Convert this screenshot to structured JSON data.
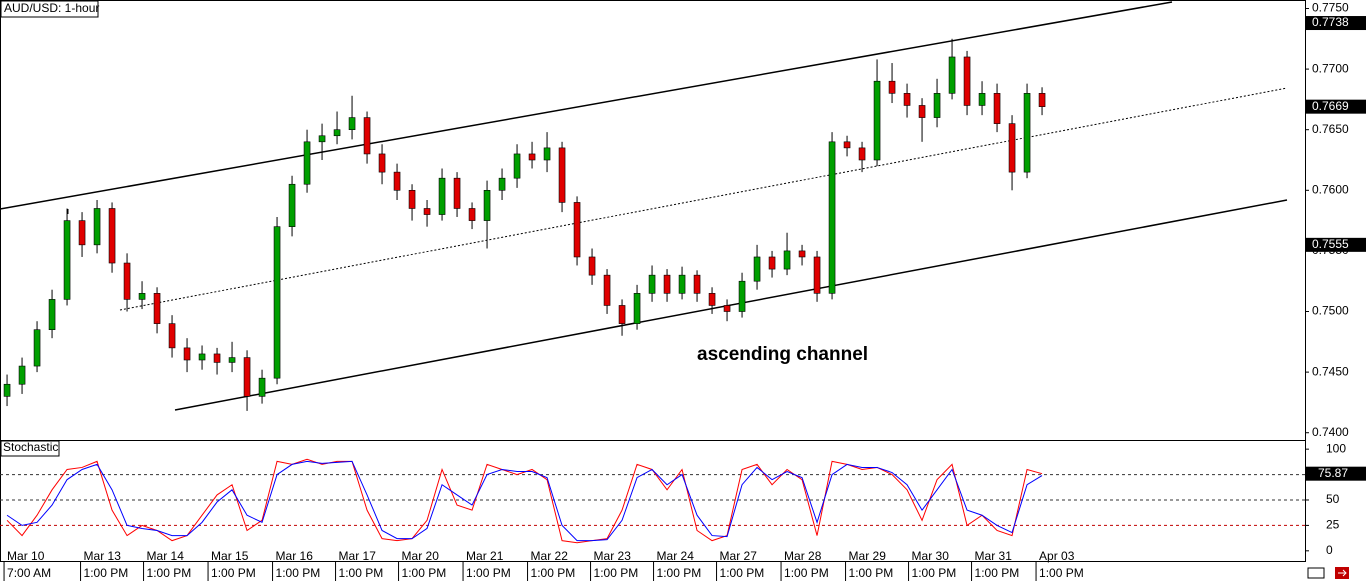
{
  "chart_data": [
    {
      "type": "candlestick",
      "title": "AUD/USD: 1-hour",
      "annotation": "ascending channel",
      "up_color": "#00a000",
      "down_color": "#e00000",
      "ylim": [
        0.7394,
        0.7757
      ],
      "yticks": [
        {
          "value": 0.74,
          "label": "0.7400"
        },
        {
          "value": 0.745,
          "label": "0.7450"
        },
        {
          "value": 0.75,
          "label": "0.7500"
        },
        {
          "value": 0.755,
          "label": "0.7550"
        },
        {
          "value": 0.76,
          "label": "0.7600"
        },
        {
          "value": 0.765,
          "label": "0.7650"
        },
        {
          "value": 0.77,
          "label": "0.7700"
        },
        {
          "value": 0.775,
          "label": "0.7750"
        }
      ],
      "price_markers": [
        0.7738,
        0.7555
      ],
      "x": [
        0,
        1,
        2,
        3,
        4,
        5,
        6,
        7,
        8,
        9,
        10,
        11,
        12,
        13,
        14,
        15,
        16,
        17,
        18,
        19,
        20,
        21,
        22,
        23,
        24,
        25,
        26,
        27,
        28,
        29,
        30,
        31,
        32,
        33,
        34,
        35,
        36,
        37,
        38,
        39,
        40,
        41,
        42,
        43,
        44,
        45,
        46,
        47,
        48,
        49,
        50,
        51,
        52,
        53,
        54,
        55,
        56,
        57,
        58,
        59,
        60,
        61,
        62,
        63,
        64,
        65,
        66,
        67,
        68,
        69
      ],
      "ohlc": [
        [
          0.743,
          0.7448,
          0.7422,
          0.744
        ],
        [
          0.744,
          0.7462,
          0.7432,
          0.7455
        ],
        [
          0.7455,
          0.7492,
          0.745,
          0.7485
        ],
        [
          0.7485,
          0.7518,
          0.7478,
          0.751
        ],
        [
          0.751,
          0.7585,
          0.7505,
          0.7575
        ],
        [
          0.7575,
          0.7582,
          0.7545,
          0.7555
        ],
        [
          0.7555,
          0.7592,
          0.7548,
          0.7585
        ],
        [
          0.7585,
          0.759,
          0.7532,
          0.754
        ],
        [
          0.754,
          0.7548,
          0.75,
          0.751
        ],
        [
          0.751,
          0.7525,
          0.7502,
          0.7515
        ],
        [
          0.7515,
          0.752,
          0.7482,
          0.749
        ],
        [
          0.749,
          0.7497,
          0.7462,
          0.747
        ],
        [
          0.747,
          0.7478,
          0.745,
          0.746
        ],
        [
          0.746,
          0.7472,
          0.7452,
          0.7465
        ],
        [
          0.7465,
          0.747,
          0.7448,
          0.7458
        ],
        [
          0.7458,
          0.7475,
          0.745,
          0.7462
        ],
        [
          0.7462,
          0.7468,
          0.7418,
          0.743
        ],
        [
          0.743,
          0.7452,
          0.7424,
          0.7445
        ],
        [
          0.7445,
          0.7578,
          0.744,
          0.757
        ],
        [
          0.757,
          0.7612,
          0.7562,
          0.7605
        ],
        [
          0.7605,
          0.765,
          0.7598,
          0.764
        ],
        [
          0.764,
          0.7655,
          0.7625,
          0.7645
        ],
        [
          0.7645,
          0.7665,
          0.7638,
          0.765
        ],
        [
          0.765,
          0.7678,
          0.7642,
          0.766
        ],
        [
          0.766,
          0.7665,
          0.7622,
          0.763
        ],
        [
          0.763,
          0.7638,
          0.7605,
          0.7615
        ],
        [
          0.7615,
          0.7622,
          0.7592,
          0.76
        ],
        [
          0.76,
          0.7605,
          0.7575,
          0.7585
        ],
        [
          0.7585,
          0.7592,
          0.757,
          0.758
        ],
        [
          0.758,
          0.7618,
          0.7575,
          0.761
        ],
        [
          0.761,
          0.7615,
          0.7578,
          0.7585
        ],
        [
          0.7585,
          0.759,
          0.7568,
          0.7575
        ],
        [
          0.7575,
          0.7608,
          0.7552,
          0.76
        ],
        [
          0.76,
          0.7618,
          0.7592,
          0.761
        ],
        [
          0.761,
          0.7638,
          0.7602,
          0.763
        ],
        [
          0.763,
          0.764,
          0.7618,
          0.7625
        ],
        [
          0.7625,
          0.7648,
          0.7615,
          0.7635
        ],
        [
          0.7635,
          0.764,
          0.7582,
          0.759
        ],
        [
          0.759,
          0.7595,
          0.7538,
          0.7545
        ],
        [
          0.7545,
          0.7552,
          0.7522,
          0.753
        ],
        [
          0.753,
          0.7535,
          0.7498,
          0.7505
        ],
        [
          0.7505,
          0.751,
          0.748,
          0.749
        ],
        [
          0.749,
          0.7522,
          0.7485,
          0.7515
        ],
        [
          0.7515,
          0.7538,
          0.7508,
          0.753
        ],
        [
          0.753,
          0.7535,
          0.7508,
          0.7515
        ],
        [
          0.7515,
          0.7537,
          0.751,
          0.753
        ],
        [
          0.753,
          0.7534,
          0.7508,
          0.7515
        ],
        [
          0.7515,
          0.752,
          0.7498,
          0.7505
        ],
        [
          0.7505,
          0.751,
          0.7492,
          0.75
        ],
        [
          0.75,
          0.7532,
          0.7495,
          0.7525
        ],
        [
          0.7525,
          0.7555,
          0.7518,
          0.7545
        ],
        [
          0.7545,
          0.755,
          0.7528,
          0.7535
        ],
        [
          0.7535,
          0.7565,
          0.753,
          0.755
        ],
        [
          0.755,
          0.7555,
          0.7538,
          0.7545
        ],
        [
          0.7545,
          0.755,
          0.7508,
          0.7515
        ],
        [
          0.7515,
          0.7648,
          0.751,
          0.764
        ],
        [
          0.764,
          0.7645,
          0.7628,
          0.7635
        ],
        [
          0.7635,
          0.764,
          0.7615,
          0.7625
        ],
        [
          0.7625,
          0.7708,
          0.762,
          0.769
        ],
        [
          0.769,
          0.7705,
          0.7672,
          0.768
        ],
        [
          0.768,
          0.7688,
          0.766,
          0.767
        ],
        [
          0.767,
          0.7676,
          0.764,
          0.766
        ],
        [
          0.766,
          0.7692,
          0.7652,
          0.768
        ],
        [
          0.768,
          0.7725,
          0.7675,
          0.771
        ],
        [
          0.771,
          0.7715,
          0.7662,
          0.767
        ],
        [
          0.767,
          0.769,
          0.7662,
          0.768
        ],
        [
          0.768,
          0.7688,
          0.7648,
          0.7655
        ],
        [
          0.7655,
          0.7662,
          0.76,
          0.7615
        ],
        [
          0.7615,
          0.7688,
          0.761,
          0.768
        ],
        [
          0.768,
          0.7685,
          0.7662,
          0.7669
        ]
      ]
    },
    {
      "type": "line",
      "title": "Stochastic",
      "xlim": [
        -0.47,
        86.53
      ],
      "xticks": [
        {
          "value": -0.2,
          "label": "Mar 10",
          "time": "7:00 AM"
        },
        {
          "value": 4.9,
          "label": "Mar 13",
          "time": "1:00 PM"
        },
        {
          "value": 9.1,
          "label": "Mar 14",
          "time": "1:00 PM"
        },
        {
          "value": 13.4,
          "label": "Mar 15",
          "time": "1:00 PM"
        },
        {
          "value": 17.7,
          "label": "Mar 16",
          "time": "1:00 PM"
        },
        {
          "value": 21.9,
          "label": "Mar 17",
          "time": "1:00 PM"
        },
        {
          "value": 26.1,
          "label": "Mar 20",
          "time": "1:00 PM"
        },
        {
          "value": 30.4,
          "label": "Mar 21",
          "time": "1:00 PM"
        },
        {
          "value": 34.7,
          "label": "Mar 22",
          "time": "1:00 PM"
        },
        {
          "value": 38.9,
          "label": "Mar 23",
          "time": "1:00 PM"
        },
        {
          "value": 43.1,
          "label": "Mar 24",
          "time": "1:00 PM"
        },
        {
          "value": 47.3,
          "label": "Mar 27",
          "time": "1:00 PM"
        },
        {
          "value": 51.6,
          "label": "Mar 28",
          "time": "1:00 PM"
        },
        {
          "value": 55.9,
          "label": "Mar 29",
          "time": "1:00 PM"
        },
        {
          "value": 60.1,
          "label": "Mar 30",
          "time": "1:00 PM"
        },
        {
          "value": 64.3,
          "label": "Mar 31",
          "time": "1:00 PM"
        },
        {
          "value": 68.6,
          "label": "Apr 03",
          "time": "1:00 PM"
        }
      ],
      "ylim": [
        -11,
        109
      ],
      "yticks": [
        0,
        25,
        50,
        100
      ],
      "levels": [
        25,
        50,
        75
      ],
      "series": [
        {
          "color": "#ff0000",
          "values": [
            30,
            15,
            35,
            60,
            80,
            82,
            88,
            40,
            15,
            25,
            20,
            10,
            15,
            35,
            55,
            65,
            20,
            30,
            88,
            85,
            90,
            85,
            88,
            88,
            40,
            12,
            10,
            12,
            30,
            80,
            45,
            40,
            85,
            80,
            75,
            80,
            70,
            10,
            8,
            10,
            12,
            40,
            85,
            80,
            60,
            80,
            20,
            10,
            15,
            80,
            85,
            65,
            80,
            70,
            15,
            88,
            85,
            80,
            82,
            75,
            60,
            30,
            70,
            85,
            25,
            35,
            20,
            15,
            80,
            75.87
          ]
        },
        {
          "color": "#0000ff",
          "values": [
            35,
            25,
            28,
            45,
            70,
            80,
            85,
            60,
            25,
            22,
            20,
            15,
            15,
            28,
            48,
            60,
            35,
            28,
            75,
            85,
            88,
            86,
            87,
            88,
            55,
            20,
            12,
            12,
            22,
            65,
            55,
            45,
            75,
            80,
            78,
            78,
            72,
            25,
            10,
            10,
            11,
            30,
            72,
            80,
            65,
            75,
            35,
            15,
            14,
            65,
            82,
            70,
            78,
            72,
            28,
            75,
            85,
            82,
            82,
            77,
            65,
            40,
            60,
            80,
            40,
            35,
            25,
            18,
            65,
            74
          ]
        }
      ]
    }
  ]
}
